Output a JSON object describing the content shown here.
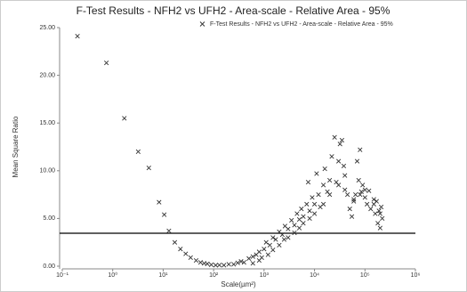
{
  "chart_data": {
    "type": "scatter",
    "title": "F-Test Results - NFH2 vs UFH2 - Area-scale - Relative Area - 95%",
    "x_label": "Scale(µm²)",
    "y_label": "Mean Square Ratio",
    "series": [
      {
        "name": "F-Test Results - NFH2 vs UFH2 - Area-scale - Relative Area - 95%",
        "color": "#333333",
        "x": [
          0.2,
          0.75,
          1.7,
          3.2,
          5.2,
          8.3,
          10.5,
          13,
          17,
          22,
          28,
          35,
          45,
          55,
          65,
          75,
          90,
          110,
          130,
          160,
          200,
          250,
          300,
          350,
          400,
          500,
          600,
          700,
          800,
          900,
          1000,
          1100,
          1300,
          1500,
          1700,
          2000,
          2300,
          2600,
          3000,
          3500,
          4000,
          4500,
          5000,
          5500,
          6000,
          7000,
          7500,
          8000,
          9000,
          10000,
          11000,
          12000,
          13000,
          15000,
          16000,
          18000,
          20000,
          22000,
          25000,
          27000,
          30000,
          32000,
          35000,
          38000,
          40000,
          45000,
          50000,
          55000,
          60000,
          65000,
          70000,
          75000,
          80000,
          85000,
          90000,
          100000,
          110000,
          120000,
          130000,
          150000,
          160000,
          170000,
          180000,
          190000,
          200000,
          210000,
          220000,
          600,
          800,
          1200,
          1500,
          2000,
          2500,
          3000,
          4000,
          5000,
          6000,
          8000,
          10000,
          15000,
          20000,
          30000,
          40000,
          60000,
          80000,
          100000,
          150000,
          200000
        ],
        "values": [
          24.1,
          21.3,
          15.5,
          12.0,
          10.3,
          6.7,
          5.4,
          3.7,
          2.5,
          1.8,
          1.3,
          0.9,
          0.6,
          0.4,
          0.3,
          0.25,
          0.15,
          0.1,
          0.12,
          0.1,
          0.2,
          0.2,
          0.35,
          0.5,
          0.4,
          0.8,
          1.0,
          1.2,
          1.5,
          0.9,
          1.8,
          2.5,
          2.2,
          3.0,
          2.8,
          3.6,
          3.3,
          4.2,
          3.9,
          4.8,
          4.3,
          5.5,
          4.9,
          6.0,
          5.2,
          6.5,
          8.8,
          5.8,
          7.2,
          6.5,
          9.7,
          7.5,
          6.2,
          8.5,
          10.2,
          7.8,
          9.0,
          11.5,
          13.5,
          8.8,
          11.0,
          12.8,
          13.2,
          10.5,
          9.5,
          7.5,
          6.0,
          5.2,
          6.8,
          7.5,
          11.0,
          9.0,
          12.2,
          7.8,
          8.5,
          7.2,
          6.5,
          7.9,
          6.0,
          7.0,
          5.5,
          6.8,
          4.5,
          5.8,
          4.0,
          6.2,
          5.0,
          0.3,
          0.6,
          1.2,
          1.7,
          2.2,
          2.8,
          3.0,
          3.5,
          4.0,
          4.5,
          5.0,
          5.5,
          6.5,
          7.5,
          8.5,
          8.0,
          7.0,
          7.5,
          8.0,
          6.5,
          5.5
        ]
      }
    ],
    "threshold": 3.45,
    "x_log": true,
    "xlim": [
      0.1,
      1000000
    ],
    "xticks": [
      {
        "value": 0.1,
        "label": "10⁻¹"
      },
      {
        "value": 1,
        "label": "10⁰"
      },
      {
        "value": 10,
        "label": "10¹"
      },
      {
        "value": 100,
        "label": "10²"
      },
      {
        "value": 1000,
        "label": "10³"
      },
      {
        "value": 10000,
        "label": "10⁴"
      },
      {
        "value": 100000,
        "label": "10⁵"
      },
      {
        "value": 1000000,
        "label": "10⁶"
      }
    ],
    "ylim": [
      0,
      25
    ],
    "yticks": [
      {
        "value": 0,
        "label": "0.00"
      },
      {
        "value": 5,
        "label": "5.00"
      },
      {
        "value": 10,
        "label": "10.00"
      },
      {
        "value": 15,
        "label": "15.00"
      },
      {
        "value": 20,
        "label": "20.00"
      },
      {
        "value": 25,
        "label": "25.00"
      }
    ],
    "legend": "top-right"
  }
}
